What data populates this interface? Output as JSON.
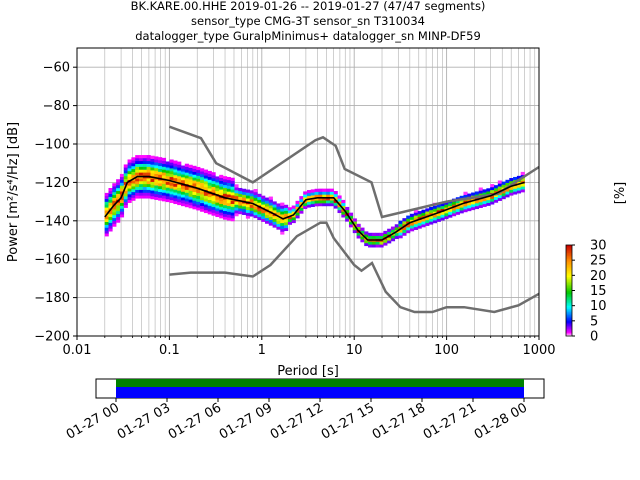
{
  "chart_data": {
    "type": "heatmap",
    "title_lines": [
      "BK.KARE.00.HHE   2019-01-26 -- 2019-01-27  (47/47 segments)",
      "sensor_type CMG-3T sensor_sn T310034",
      "datalogger_type GuralpMinimus+ datalogger_sn MINP-DF59"
    ],
    "xlabel": "Period [s]",
    "ylabel": "Power [m²/s⁴/Hz] [dB]",
    "x_scale": "log",
    "xlim": [
      0.01,
      1000
    ],
    "ylim": [
      -200,
      -50
    ],
    "x_ticks": [
      {
        "value": 0.01,
        "label": "0.01"
      },
      {
        "value": 0.1,
        "label": "0.1"
      },
      {
        "value": 1,
        "label": "1"
      },
      {
        "value": 10,
        "label": "10"
      },
      {
        "value": 100,
        "label": "100"
      },
      {
        "value": 1000,
        "label": "1000"
      }
    ],
    "y_ticks": [
      {
        "value": -60,
        "label": "−60"
      },
      {
        "value": -80,
        "label": "−80"
      },
      {
        "value": -100,
        "label": "−100"
      },
      {
        "value": -120,
        "label": "−120"
      },
      {
        "value": -140,
        "label": "−140"
      },
      {
        "value": -160,
        "label": "−160"
      },
      {
        "value": -180,
        "label": "−180"
      },
      {
        "value": -200,
        "label": "−200"
      }
    ],
    "grid": true,
    "noise_models": [
      {
        "name": "high-noise",
        "points": [
          [
            0.1,
            -91
          ],
          [
            0.22,
            -97
          ],
          [
            0.32,
            -110
          ],
          [
            0.8,
            -120
          ],
          [
            3.8,
            -98
          ],
          [
            4.6,
            -96.5
          ],
          [
            6.3,
            -101
          ],
          [
            7.9,
            -113
          ],
          [
            15.4,
            -120
          ],
          [
            20,
            -138
          ],
          [
            100,
            -130
          ],
          [
            354.8,
            -126
          ],
          [
            1000,
            -112
          ]
        ]
      },
      {
        "name": "low-noise",
        "points": [
          [
            0.1,
            -168
          ],
          [
            0.17,
            -167
          ],
          [
            0.4,
            -167
          ],
          [
            0.8,
            -169
          ],
          [
            1.24,
            -163
          ],
          [
            2.4,
            -148
          ],
          [
            4.3,
            -141
          ],
          [
            5,
            -141
          ],
          [
            6,
            -149
          ],
          [
            10,
            -163
          ],
          [
            12,
            -166
          ],
          [
            15.6,
            -162
          ],
          [
            21.9,
            -177
          ],
          [
            31.6,
            -185
          ],
          [
            45,
            -187.5
          ],
          [
            70,
            -187.5
          ],
          [
            100,
            -185
          ],
          [
            154.5,
            -185
          ],
          [
            328.2,
            -187.5
          ],
          [
            600,
            -184
          ],
          [
            1000,
            -178
          ]
        ]
      }
    ],
    "median": [
      [
        0.02,
        -138
      ],
      [
        0.025,
        -132
      ],
      [
        0.03,
        -128
      ],
      [
        0.035,
        -120
      ],
      [
        0.045,
        -117
      ],
      [
        0.06,
        -117
      ],
      [
        0.1,
        -119
      ],
      [
        0.2,
        -123
      ],
      [
        0.4,
        -128
      ],
      [
        0.8,
        -131
      ],
      [
        1.3,
        -136
      ],
      [
        1.7,
        -139
      ],
      [
        2.2,
        -137
      ],
      [
        3,
        -129
      ],
      [
        4,
        -128
      ],
      [
        6,
        -128
      ],
      [
        8,
        -135
      ],
      [
        11,
        -145
      ],
      [
        14,
        -150
      ],
      [
        20,
        -150
      ],
      [
        28,
        -146
      ],
      [
        40,
        -141
      ],
      [
        60,
        -138
      ],
      [
        90,
        -135
      ],
      [
        150,
        -131
      ],
      [
        300,
        -127
      ],
      [
        500,
        -122
      ],
      [
        700,
        -120
      ]
    ],
    "colorbar": {
      "label": "[%]",
      "range": [
        0,
        30
      ],
      "ticks": [
        {
          "value": 0,
          "label": "0"
        },
        {
          "value": 5,
          "label": "5"
        },
        {
          "value": 10,
          "label": "10"
        },
        {
          "value": 15,
          "label": "15"
        },
        {
          "value": 20,
          "label": "20"
        },
        {
          "value": 25,
          "label": "25"
        },
        {
          "value": 30,
          "label": "30"
        }
      ]
    },
    "coverage": {
      "ticks": [
        "01-27 00",
        "01-27 03",
        "01-27 06",
        "01-27 09",
        "01-27 12",
        "01-27 15",
        "01-27 18",
        "01-27 21",
        "01-28 00"
      ],
      "colors": {
        "data": "#0000ff",
        "used": "#008000"
      }
    }
  }
}
